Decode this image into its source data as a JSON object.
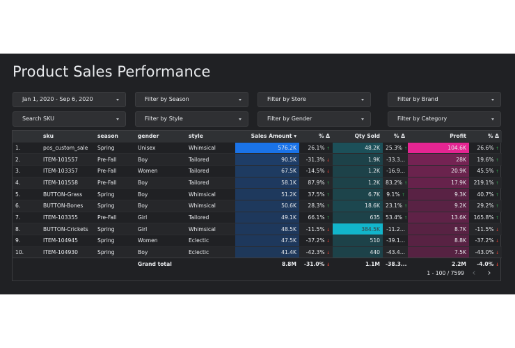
{
  "title": "Product Sales Performance",
  "filters": {
    "date": "Jan 1, 2020 - Sep 6, 2020",
    "season": "Filter by Season",
    "store": "Filter by Store",
    "brand": "Filter by Brand",
    "sku": "Search SKU",
    "style": "Filter by Style",
    "gender": "Filter by Gender",
    "category": "Filter by Category"
  },
  "table": {
    "headers": {
      "sku": "sku",
      "season": "season",
      "gender": "gender",
      "style": "style",
      "sales": "Sales Amount",
      "sales_delta": "% Δ",
      "qty": "Qty Sold",
      "qty_delta": "% Δ",
      "profit": "Profit",
      "profit_delta": "% Δ"
    },
    "sort_indicator": "▾",
    "rows": [
      {
        "n": "1.",
        "sku": "pos_custom_sale",
        "season": "Spring",
        "gender": "Unisex",
        "style": "Whimsical",
        "sales": "576.2K",
        "sales_pct": "26.1%",
        "sales_dir": "up",
        "qty": "48.2K",
        "qty_pct": "25.3%",
        "qty_dir": "up",
        "profit": "104.6K",
        "profit_pct": "26.6%",
        "profit_dir": "up"
      },
      {
        "n": "2.",
        "sku": "ITEM-101557",
        "season": "Pre-Fall",
        "gender": "Boy",
        "style": "Tailored",
        "sales": "90.5K",
        "sales_pct": "-31.3%",
        "sales_dir": "down",
        "qty": "1.9K",
        "qty_pct": "-33.3...",
        "qty_dir": "none",
        "profit": "28K",
        "profit_pct": "19.6%",
        "profit_dir": "up"
      },
      {
        "n": "3.",
        "sku": "ITEM-103357",
        "season": "Pre-Fall",
        "gender": "Women",
        "style": "Tailored",
        "sales": "67.5K",
        "sales_pct": "-14.5%",
        "sales_dir": "down",
        "qty": "1.2K",
        "qty_pct": "-16.9...",
        "qty_dir": "none",
        "profit": "20.9K",
        "profit_pct": "45.5%",
        "profit_dir": "up"
      },
      {
        "n": "4.",
        "sku": "ITEM-101558",
        "season": "Pre-Fall",
        "gender": "Boy",
        "style": "Tailored",
        "sales": "58.1K",
        "sales_pct": "87.9%",
        "sales_dir": "up",
        "qty": "1.2K",
        "qty_pct": "83.2%",
        "qty_dir": "up",
        "profit": "17.9K",
        "profit_pct": "219.1%",
        "profit_dir": "up"
      },
      {
        "n": "5.",
        "sku": "BUTTON-Grass",
        "season": "Spring",
        "gender": "Boy",
        "style": "Whimsical",
        "sales": "51.2K",
        "sales_pct": "37.5%",
        "sales_dir": "up",
        "qty": "6.7K",
        "qty_pct": "9.1%",
        "qty_dir": "up",
        "profit": "9.3K",
        "profit_pct": "40.7%",
        "profit_dir": "up"
      },
      {
        "n": "6.",
        "sku": "BUTTON-Bones",
        "season": "Spring",
        "gender": "Boy",
        "style": "Whimsical",
        "sales": "50.6K",
        "sales_pct": "28.3%",
        "sales_dir": "up",
        "qty": "18.6K",
        "qty_pct": "23.1%",
        "qty_dir": "up",
        "profit": "9.2K",
        "profit_pct": "29.2%",
        "profit_dir": "up"
      },
      {
        "n": "7.",
        "sku": "ITEM-103355",
        "season": "Pre-Fall",
        "gender": "Girl",
        "style": "Tailored",
        "sales": "49.1K",
        "sales_pct": "66.1%",
        "sales_dir": "up",
        "qty": "635",
        "qty_pct": "53.4%",
        "qty_dir": "up",
        "profit": "13.6K",
        "profit_pct": "165.8%",
        "profit_dir": "up"
      },
      {
        "n": "8.",
        "sku": "BUTTON-Crickets",
        "season": "Spring",
        "gender": "Girl",
        "style": "Whimsical",
        "sales": "48.5K",
        "sales_pct": "-11.5%",
        "sales_dir": "down",
        "qty": "384.5K",
        "qty_pct": "-11.2...",
        "qty_dir": "none",
        "profit": "8.7K",
        "profit_pct": "-11.5%",
        "profit_dir": "down"
      },
      {
        "n": "9.",
        "sku": "ITEM-104945",
        "season": "Spring",
        "gender": "Women",
        "style": "Eclectic",
        "sales": "47.5K",
        "sales_pct": "-37.2%",
        "sales_dir": "down",
        "qty": "510",
        "qty_pct": "-39.1...",
        "qty_dir": "none",
        "profit": "8.8K",
        "profit_pct": "-37.2%",
        "profit_dir": "down"
      },
      {
        "n": "10.",
        "sku": "ITEM-104930",
        "season": "Spring",
        "gender": "Boy",
        "style": "Eclectic",
        "sales": "41.4K",
        "sales_pct": "-42.3%",
        "sales_dir": "down",
        "qty": "440",
        "qty_pct": "-43.4...",
        "qty_dir": "none",
        "profit": "7.5K",
        "profit_pct": "-43.0%",
        "profit_dir": "down"
      }
    ],
    "total": {
      "label": "Grand total",
      "sales": "8.8M",
      "sales_pct": "-31.0%",
      "sales_dir": "down",
      "qty": "1.1M",
      "qty_pct": "-38.3...",
      "qty_dir": "none",
      "profit": "2.2M",
      "profit_pct": "-4.0%",
      "profit_dir": "down"
    }
  },
  "pagination": {
    "label": "1 - 100 / 7599"
  },
  "colors": {
    "sales_heat": "#1a73e8",
    "qty_heat": "#12b5cb",
    "profit_heat": "#e52592",
    "up": "#34a853",
    "down": "#ea4335"
  }
}
